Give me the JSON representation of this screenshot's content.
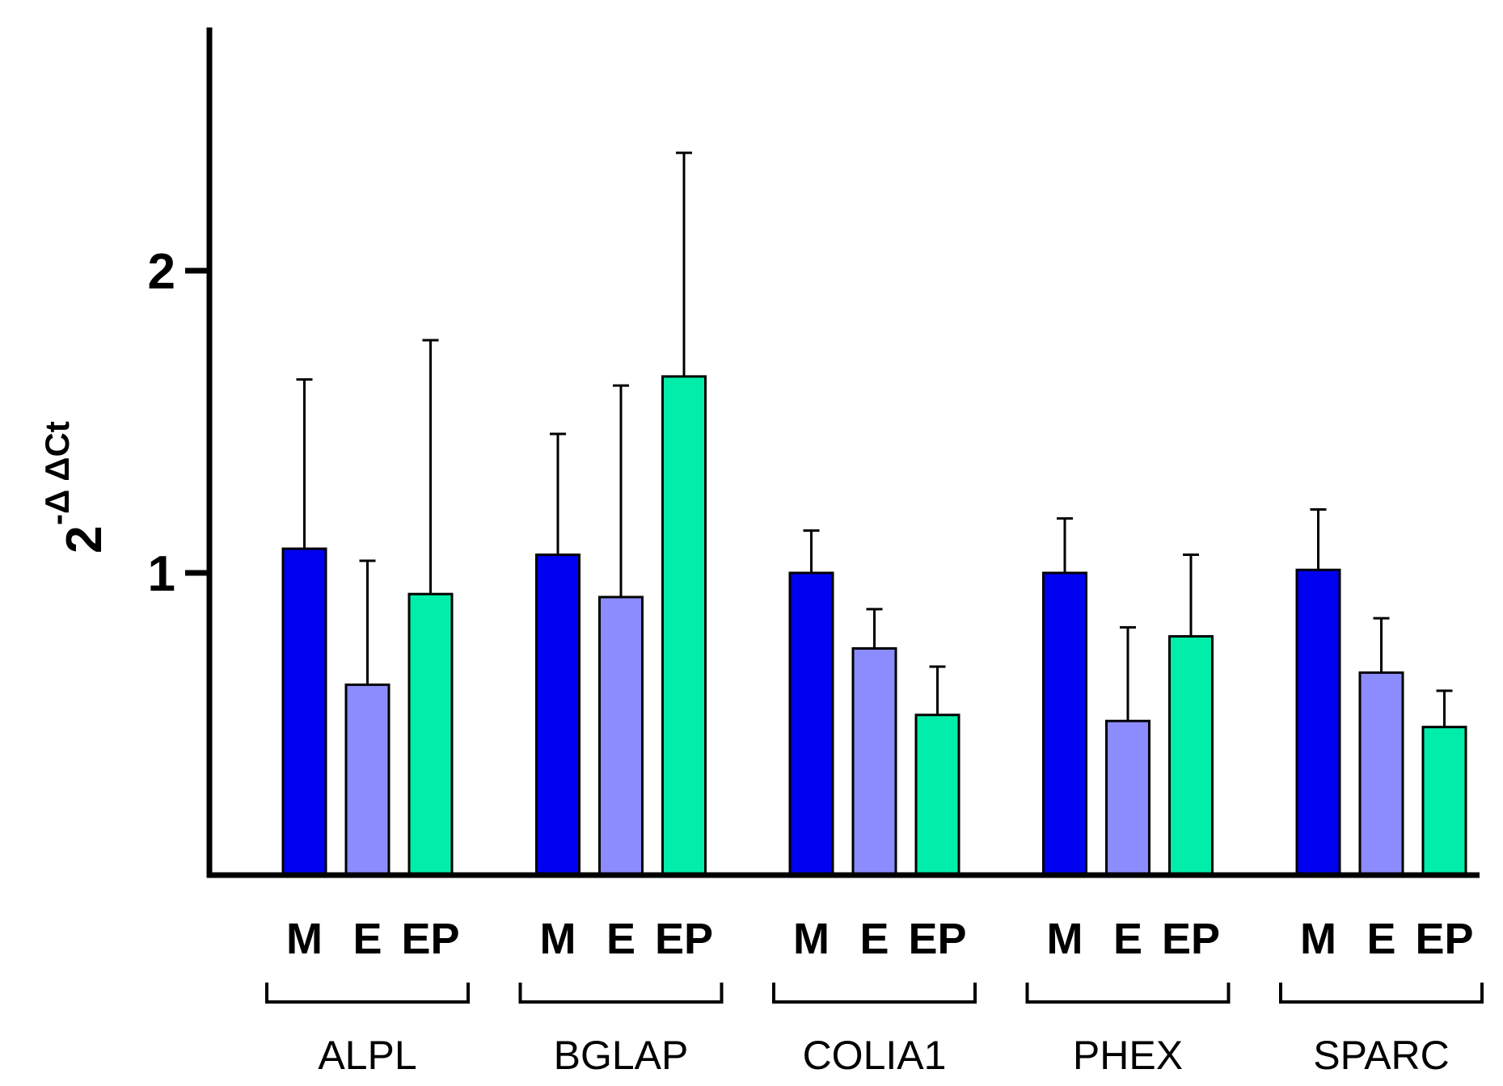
{
  "chart_data": {
    "type": "bar",
    "title": "",
    "xlabel": "",
    "ylabel": {
      "base": "2",
      "exponent": "-Δ ΔCt"
    },
    "ylim": [
      0,
      2.8
    ],
    "yticks": [
      {
        "value": 1,
        "label": "1"
      },
      {
        "value": 2,
        "label": "2"
      }
    ],
    "grid": false,
    "legend": "none",
    "categories": [
      "ALPL",
      "BGLAP",
      "COLIA1",
      "PHEX",
      "SPARC"
    ],
    "series": [
      {
        "name": "M",
        "color": "#0000f0",
        "values": [
          1.08,
          1.06,
          1.0,
          1.0,
          1.01
        ],
        "errors": [
          0.56,
          0.4,
          0.14,
          0.18,
          0.2
        ]
      },
      {
        "name": "E",
        "color": "#8c8cff",
        "values": [
          0.63,
          0.92,
          0.75,
          0.51,
          0.67
        ],
        "errors": [
          0.41,
          0.7,
          0.13,
          0.31,
          0.18
        ]
      },
      {
        "name": "EP",
        "color": "#00eeaa",
        "values": [
          0.93,
          1.65,
          0.53,
          0.79,
          0.49
        ],
        "errors": [
          0.84,
          0.74,
          0.16,
          0.27,
          0.12
        ]
      }
    ]
  }
}
